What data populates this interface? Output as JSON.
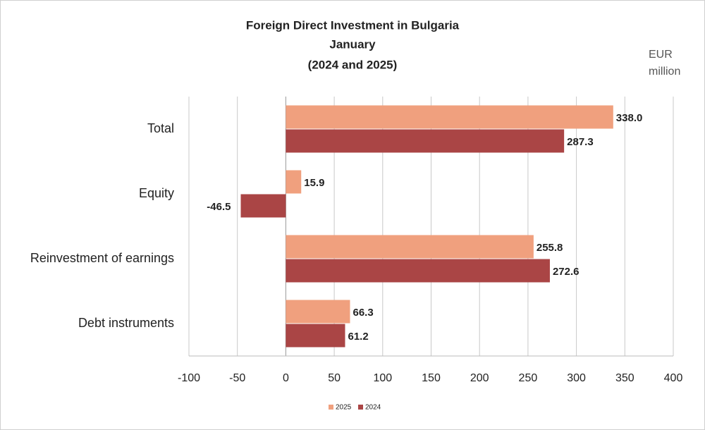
{
  "chart_data": {
    "type": "hbar",
    "title": "Foreign Direct Investment in Bulgaria",
    "subtitle": "January",
    "period": "(2024 and 2025)",
    "unit": "EUR million",
    "categories": [
      "Total",
      "Equity",
      "Reinvestment of earnings",
      "Debt instruments"
    ],
    "series": [
      {
        "name": "2025",
        "color": "#f0a07e",
        "values": [
          338.0,
          15.9,
          255.8,
          66.3
        ],
        "value_labels": [
          "338.0",
          "15.9",
          "255.8",
          "66.3"
        ]
      },
      {
        "name": "2024",
        "color": "#aa4545",
        "values": [
          287.3,
          -46.5,
          272.6,
          61.2
        ],
        "value_labels": [
          "287.3",
          "-46.5",
          "272.6",
          "61.2"
        ]
      }
    ],
    "xlim": [
      -100,
      400
    ],
    "xticks": [
      -100,
      -50,
      0,
      50,
      100,
      150,
      200,
      250,
      300,
      350,
      400
    ],
    "grid": true
  }
}
